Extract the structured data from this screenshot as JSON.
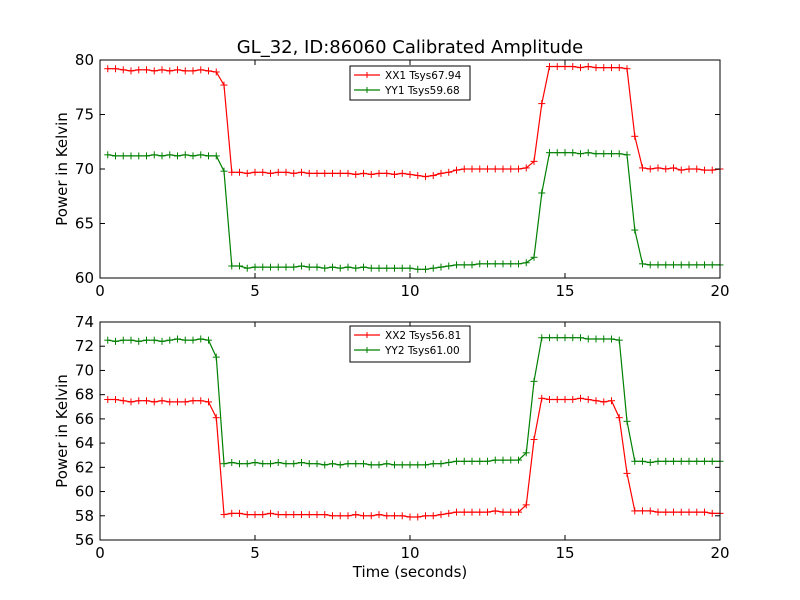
{
  "figure_title": "GL_32, ID:86060 Calibrated Amplitude",
  "chart_data": [
    {
      "type": "line",
      "title": "GL_32, ID:86060 Calibrated Amplitude",
      "xlabel": "",
      "ylabel": "Power in Kelvin",
      "xlim": [
        0,
        20
      ],
      "ylim": [
        60,
        80
      ],
      "xticks": [
        "0",
        "5",
        "10",
        "15",
        "20"
      ],
      "yticks": [
        "60",
        "65",
        "70",
        "75",
        "80"
      ],
      "grid": false,
      "legend_position": "top-center",
      "x": [
        0.25,
        0.5,
        0.75,
        1.0,
        1.25,
        1.5,
        1.75,
        2.0,
        2.25,
        2.5,
        2.75,
        3.0,
        3.25,
        3.5,
        3.75,
        4.0,
        4.25,
        4.5,
        4.75,
        5.0,
        5.25,
        5.5,
        5.75,
        6.0,
        6.25,
        6.5,
        6.75,
        7.0,
        7.25,
        7.5,
        7.75,
        8.0,
        8.25,
        8.5,
        8.75,
        9.0,
        9.25,
        9.5,
        9.75,
        10.0,
        10.25,
        10.5,
        10.75,
        11.0,
        11.25,
        11.5,
        11.75,
        12.0,
        12.25,
        12.5,
        12.75,
        13.0,
        13.25,
        13.5,
        13.75,
        14.0,
        14.25,
        14.5,
        14.75,
        15.0,
        15.25,
        15.5,
        15.75,
        16.0,
        16.25,
        16.5,
        16.75,
        17.0,
        17.25,
        17.5,
        17.75,
        18.0,
        18.25,
        18.5,
        18.75,
        19.0,
        19.25,
        19.5,
        19.75,
        20.0
      ],
      "series": [
        {
          "name": "XX1 Tsys67.94",
          "color": "#ff0000",
          "values": [
            79.2,
            79.2,
            79.1,
            79.0,
            79.1,
            79.1,
            79.0,
            79.1,
            79.0,
            79.1,
            79.0,
            79.0,
            79.1,
            79.0,
            78.9,
            77.7,
            69.7,
            69.7,
            69.6,
            69.7,
            69.7,
            69.6,
            69.7,
            69.7,
            69.6,
            69.7,
            69.6,
            69.6,
            69.6,
            69.6,
            69.6,
            69.6,
            69.5,
            69.6,
            69.5,
            69.6,
            69.6,
            69.5,
            69.6,
            69.5,
            69.4,
            69.3,
            69.4,
            69.6,
            69.7,
            69.9,
            70.0,
            70.0,
            70.0,
            70.0,
            70.0,
            70.0,
            70.0,
            70.0,
            70.1,
            70.7,
            76.0,
            79.4,
            79.4,
            79.4,
            79.4,
            79.3,
            79.4,
            79.3,
            79.3,
            79.3,
            79.3,
            79.2,
            73.0,
            70.1,
            70.0,
            70.1,
            70.0,
            70.1,
            69.9,
            70.0,
            70.0,
            69.9,
            69.9,
            70.0
          ]
        },
        {
          "name": "YY1 Tsys59.68",
          "color": "#008000",
          "values": [
            71.3,
            71.2,
            71.2,
            71.2,
            71.2,
            71.2,
            71.3,
            71.2,
            71.3,
            71.2,
            71.3,
            71.2,
            71.3,
            71.2,
            71.2,
            69.8,
            61.1,
            61.1,
            60.9,
            61.0,
            61.0,
            61.0,
            61.0,
            61.0,
            61.0,
            61.1,
            61.0,
            61.0,
            60.9,
            61.0,
            60.9,
            61.0,
            60.9,
            61.0,
            60.9,
            60.9,
            60.9,
            60.9,
            60.9,
            60.9,
            60.8,
            60.8,
            60.9,
            61.0,
            61.1,
            61.2,
            61.2,
            61.2,
            61.3,
            61.3,
            61.3,
            61.3,
            61.3,
            61.3,
            61.4,
            61.9,
            67.8,
            71.5,
            71.5,
            71.5,
            71.5,
            71.4,
            71.5,
            71.4,
            71.4,
            71.4,
            71.4,
            71.3,
            64.4,
            61.3,
            61.2,
            61.2,
            61.2,
            61.2,
            61.2,
            61.2,
            61.2,
            61.2,
            61.2,
            61.2
          ]
        }
      ]
    },
    {
      "type": "line",
      "title": "",
      "xlabel": "Time (seconds)",
      "ylabel": "Power in Kelvin",
      "xlim": [
        0,
        20
      ],
      "ylim": [
        56,
        74
      ],
      "xticks": [
        "0",
        "5",
        "10",
        "15",
        "20"
      ],
      "yticks": [
        "56",
        "58",
        "60",
        "62",
        "64",
        "66",
        "68",
        "70",
        "72",
        "74"
      ],
      "grid": false,
      "legend_position": "top-center",
      "x": [
        0.25,
        0.5,
        0.75,
        1.0,
        1.25,
        1.5,
        1.75,
        2.0,
        2.25,
        2.5,
        2.75,
        3.0,
        3.25,
        3.5,
        3.75,
        4.0,
        4.25,
        4.5,
        4.75,
        5.0,
        5.25,
        5.5,
        5.75,
        6.0,
        6.25,
        6.5,
        6.75,
        7.0,
        7.25,
        7.5,
        7.75,
        8.0,
        8.25,
        8.5,
        8.75,
        9.0,
        9.25,
        9.5,
        9.75,
        10.0,
        10.25,
        10.5,
        10.75,
        11.0,
        11.25,
        11.5,
        11.75,
        12.0,
        12.25,
        12.5,
        12.75,
        13.0,
        13.25,
        13.5,
        13.75,
        14.0,
        14.25,
        14.5,
        14.75,
        15.0,
        15.25,
        15.5,
        15.75,
        16.0,
        16.25,
        16.5,
        16.75,
        17.0,
        17.25,
        17.5,
        17.75,
        18.0,
        18.25,
        18.5,
        18.75,
        19.0,
        19.25,
        19.5,
        19.75,
        20.0
      ],
      "series": [
        {
          "name": "XX2 Tsys56.81",
          "color": "#ff0000",
          "values": [
            67.6,
            67.6,
            67.5,
            67.4,
            67.5,
            67.5,
            67.4,
            67.5,
            67.4,
            67.4,
            67.4,
            67.5,
            67.5,
            67.4,
            66.1,
            58.1,
            58.2,
            58.2,
            58.1,
            58.1,
            58.1,
            58.2,
            58.1,
            58.1,
            58.1,
            58.1,
            58.1,
            58.1,
            58.1,
            58.0,
            58.0,
            58.0,
            58.1,
            58.0,
            58.0,
            58.1,
            58.0,
            58.0,
            58.0,
            57.9,
            57.9,
            58.0,
            58.0,
            58.1,
            58.2,
            58.3,
            58.3,
            58.3,
            58.3,
            58.3,
            58.4,
            58.3,
            58.3,
            58.3,
            58.9,
            64.3,
            67.7,
            67.6,
            67.6,
            67.6,
            67.6,
            67.7,
            67.6,
            67.5,
            67.4,
            67.5,
            66.1,
            61.5,
            58.4,
            58.4,
            58.4,
            58.3,
            58.3,
            58.3,
            58.3,
            58.3,
            58.3,
            58.3,
            58.2,
            58.2
          ]
        },
        {
          "name": "YY2 Tsys61.00",
          "color": "#008000",
          "values": [
            72.5,
            72.4,
            72.5,
            72.5,
            72.4,
            72.5,
            72.5,
            72.4,
            72.5,
            72.6,
            72.5,
            72.5,
            72.6,
            72.5,
            71.1,
            62.3,
            62.4,
            62.3,
            62.3,
            62.4,
            62.3,
            62.3,
            62.4,
            62.3,
            62.3,
            62.4,
            62.3,
            62.3,
            62.2,
            62.3,
            62.2,
            62.3,
            62.3,
            62.3,
            62.2,
            62.2,
            62.3,
            62.2,
            62.2,
            62.2,
            62.2,
            62.2,
            62.3,
            62.3,
            62.4,
            62.5,
            62.5,
            62.5,
            62.5,
            62.5,
            62.6,
            62.6,
            62.6,
            62.6,
            63.2,
            69.1,
            72.7,
            72.7,
            72.7,
            72.7,
            72.7,
            72.7,
            72.6,
            72.6,
            72.6,
            72.6,
            72.5,
            65.8,
            62.5,
            62.5,
            62.4,
            62.5,
            62.5,
            62.5,
            62.5,
            62.5,
            62.5,
            62.5,
            62.5,
            62.5
          ]
        }
      ]
    }
  ]
}
